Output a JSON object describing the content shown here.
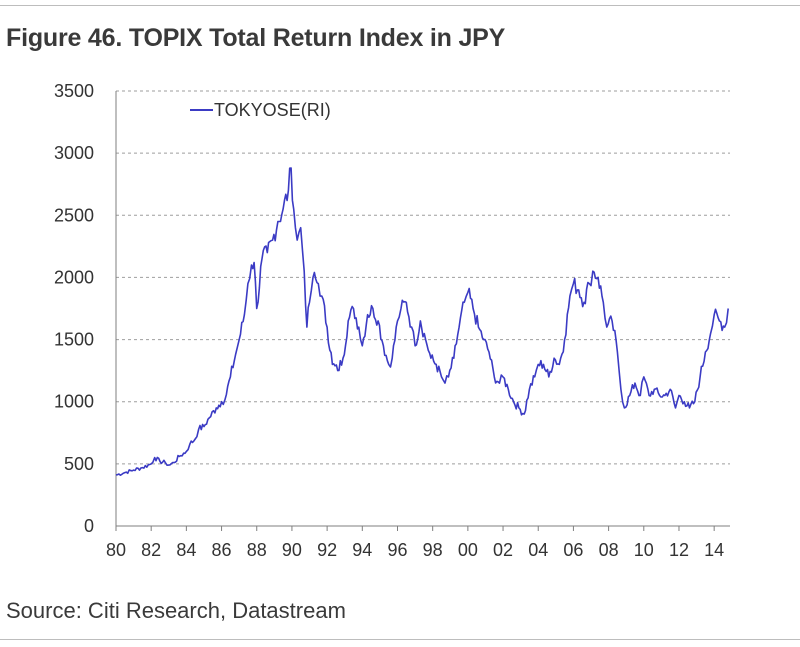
{
  "title": "Figure 46. TOPIX Total Return Index in JPY",
  "source": "Source: Citi Research, Datastream",
  "colors": {
    "series": "#3b3bc4",
    "grid": "#9e9e9e",
    "axis": "#7f7f7f"
  },
  "chart_data": {
    "type": "line",
    "title": "Figure 46. TOPIX Total Return Index in JPY",
    "xlabel": "",
    "ylabel": "",
    "xlim": [
      1980,
      2014.9
    ],
    "ylim": [
      0,
      3500
    ],
    "yticks": [
      0,
      500,
      1000,
      1500,
      2000,
      2500,
      3000,
      3500
    ],
    "xticks": [
      1980,
      1982,
      1984,
      1986,
      1988,
      1990,
      1992,
      1994,
      1996,
      1998,
      2000,
      2002,
      2004,
      2006,
      2008,
      2010,
      2012,
      2014
    ],
    "xtick_labels": [
      "80",
      "82",
      "84",
      "86",
      "88",
      "90",
      "92",
      "94",
      "96",
      "98",
      "00",
      "02",
      "04",
      "06",
      "08",
      "10",
      "12",
      "14"
    ],
    "grid": "horizontal dashed",
    "legend": {
      "position": "top-left",
      "entries": [
        "TOKYOSE(RI)"
      ]
    },
    "series": [
      {
        "name": "TOKYOSE(RI)",
        "color": "#3b3bc4",
        "x": [
          1980.0,
          1980.5,
          1981.0,
          1981.5,
          1982.0,
          1982.2,
          1982.5,
          1982.8,
          1983.0,
          1983.3,
          1983.6,
          1984.0,
          1984.2,
          1984.5,
          1984.7,
          1985.0,
          1985.3,
          1985.7,
          1986.0,
          1986.2,
          1986.5,
          1986.8,
          1987.0,
          1987.3,
          1987.5,
          1987.7,
          1987.85,
          1988.0,
          1988.3,
          1988.6,
          1988.9,
          1989.2,
          1989.5,
          1989.8,
          1989.95,
          1990.1,
          1990.3,
          1990.5,
          1990.7,
          1990.85,
          1991.0,
          1991.2,
          1991.5,
          1991.7,
          1992.0,
          1992.3,
          1992.6,
          1992.9,
          1993.2,
          1993.5,
          1993.8,
          1994.0,
          1994.3,
          1994.6,
          1994.9,
          1995.2,
          1995.5,
          1995.7,
          1996.0,
          1996.2,
          1996.5,
          1996.8,
          1997.0,
          1997.3,
          1997.6,
          1997.9,
          1998.2,
          1998.5,
          1998.7,
          1998.9,
          1999.2,
          1999.5,
          1999.8,
          2000.0,
          2000.3,
          2000.6,
          2000.9,
          2001.2,
          2001.5,
          2001.8,
          2002.0,
          2002.3,
          2002.6,
          2002.9,
          2003.2,
          2003.5,
          2003.8,
          2004.0,
          2004.3,
          2004.6,
          2004.9,
          2005.2,
          2005.5,
          2005.8,
          2006.0,
          2006.3,
          2006.6,
          2006.9,
          2007.1,
          2007.4,
          2007.7,
          2007.9,
          2008.2,
          2008.5,
          2008.7,
          2008.9,
          2009.2,
          2009.5,
          2009.8,
          2010.0,
          2010.3,
          2010.6,
          2010.9,
          2011.2,
          2011.5,
          2011.8,
          2012.0,
          2012.3,
          2012.6,
          2012.9,
          2013.2,
          2013.5,
          2013.8,
          2014.0,
          2014.3,
          2014.6,
          2014.8
        ],
        "y": [
          410,
          430,
          450,
          470,
          500,
          550,
          520,
          510,
          490,
          510,
          560,
          600,
          660,
          700,
          780,
          800,
          870,
          950,
          1000,
          1020,
          1200,
          1380,
          1500,
          1700,
          1950,
          2100,
          2120,
          1750,
          2150,
          2200,
          2300,
          2450,
          2550,
          2700,
          2880,
          2550,
          2300,
          2400,
          2050,
          1600,
          1800,
          2000,
          1950,
          1850,
          1600,
          1300,
          1250,
          1350,
          1650,
          1750,
          1600,
          1450,
          1700,
          1750,
          1650,
          1450,
          1300,
          1350,
          1650,
          1750,
          1800,
          1600,
          1450,
          1650,
          1500,
          1350,
          1300,
          1200,
          1150,
          1200,
          1350,
          1600,
          1800,
          1880,
          1750,
          1600,
          1500,
          1400,
          1200,
          1150,
          1200,
          1100,
          1000,
          950,
          900,
          1100,
          1200,
          1300,
          1300,
          1200,
          1350,
          1300,
          1500,
          1850,
          1950,
          1900,
          1800,
          1950,
          2050,
          2000,
          1800,
          1600,
          1650,
          1400,
          1100,
          950,
          1050,
          1150,
          1050,
          1200,
          1050,
          1100,
          1050,
          1050,
          1100,
          950,
          1050,
          1000,
          950,
          1000,
          1200,
          1400,
          1550,
          1700,
          1650,
          1600,
          1750
        ]
      }
    ]
  }
}
